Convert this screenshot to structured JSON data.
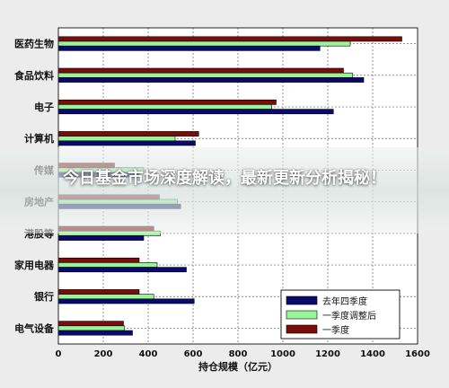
{
  "overlay": {
    "title": "今日基金市场深度解读，最新更新分析揭秘！"
  },
  "colors": {
    "series_q4": "#0a0a6e",
    "series_q1_adj": "#98f598",
    "series_q1": "#7a0c0c",
    "frame": "#222222",
    "grid": "#777777"
  },
  "chart_data": {
    "type": "bar",
    "orientation": "horizontal",
    "categories": [
      "医药生物",
      "食品饮料",
      "电子",
      "计算机",
      "传媒",
      "房地产",
      "港股等",
      "家用电器",
      "银行",
      "电气设备"
    ],
    "series": [
      {
        "name": "去年四季度",
        "values": [
          1165,
          1360,
          1225,
          610,
          360,
          545,
          380,
          570,
          605,
          330
        ]
      },
      {
        "name": "一季度调整后",
        "values": [
          1300,
          1310,
          950,
          520,
          380,
          530,
          455,
          440,
          425,
          295
        ]
      },
      {
        "name": "一季度",
        "values": [
          1530,
          1270,
          970,
          625,
          250,
          450,
          425,
          360,
          360,
          290
        ]
      }
    ],
    "xlabel": "持仓规模（亿元）",
    "ylabel": "",
    "xlim": [
      0,
      1600
    ],
    "xticks": [
      "0",
      "200",
      "400",
      "600",
      "800",
      "1000",
      "1200",
      "1400",
      "1600"
    ],
    "grid": true,
    "legend_position": "bottom-right"
  }
}
